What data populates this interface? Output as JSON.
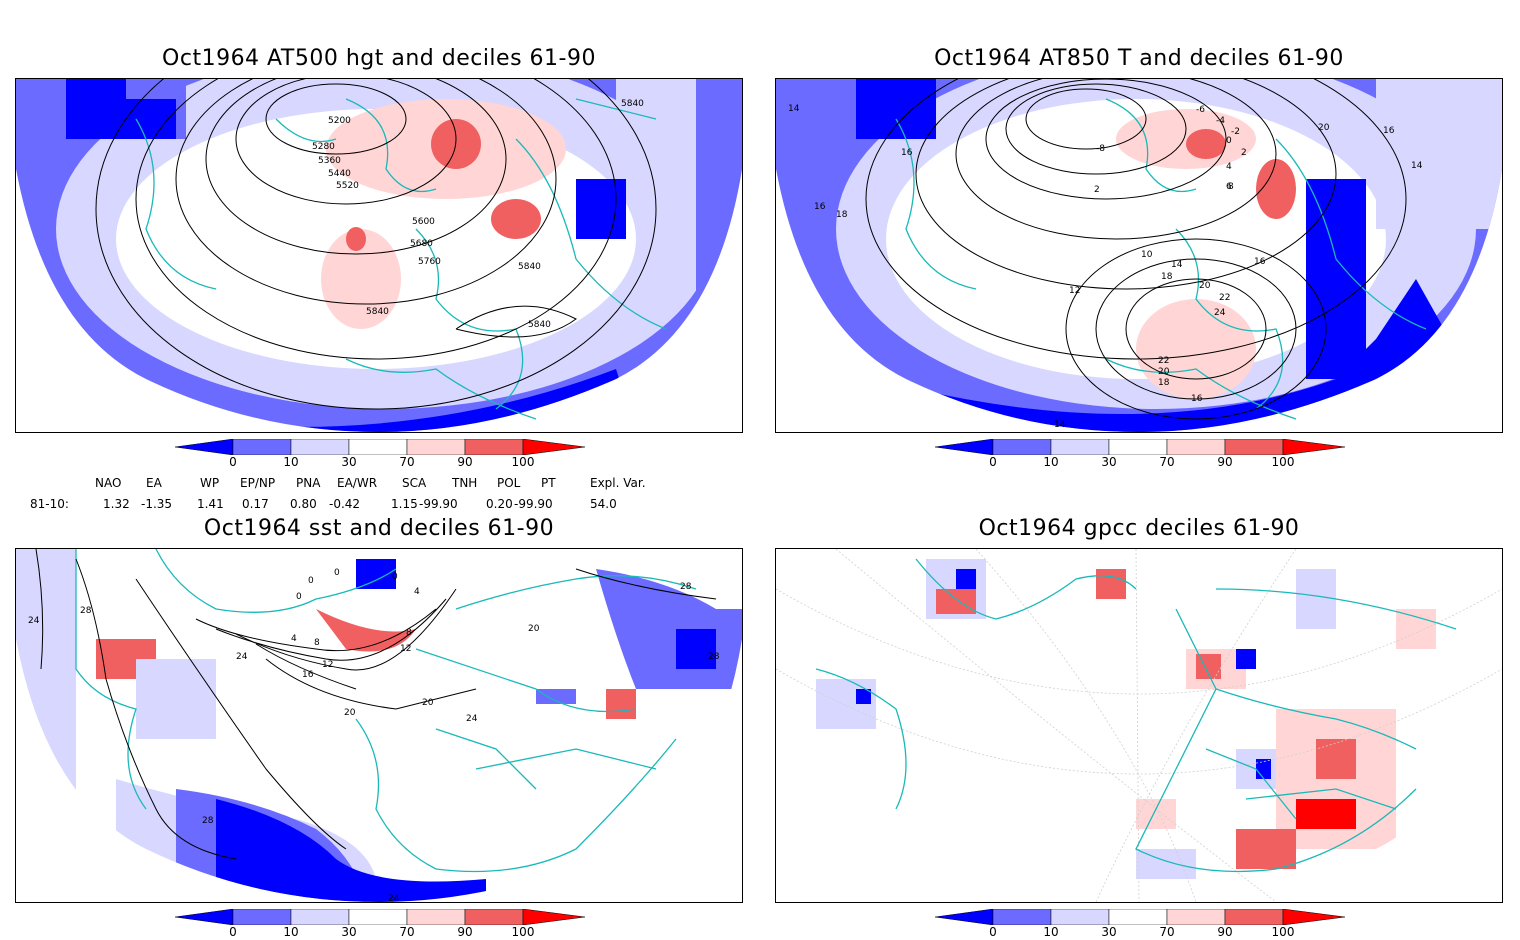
{
  "panels": {
    "p1": {
      "title": "Oct1964 AT500 hgt and deciles 61-90",
      "contour_labels": [
        "5200",
        "5280",
        "5360",
        "5440",
        "5520",
        "5600",
        "5680",
        "5760",
        "5840",
        "5840",
        "5840",
        "5840"
      ]
    },
    "p2": {
      "title": "Oct1964 AT850 T and deciles 61-90",
      "contour_labels": [
        "14",
        "16",
        "16",
        "18",
        "20",
        "16",
        "14",
        "-6",
        "-4",
        "-2",
        "0",
        "2",
        "4",
        "6",
        "10",
        "12",
        "14",
        "16",
        "18",
        "20",
        "22",
        "24",
        "22",
        "20",
        "18",
        "16",
        "14",
        "-8",
        "8",
        "2"
      ]
    },
    "p3": {
      "title": "Oct1964 sst and deciles 61-90",
      "contour_labels": [
        "24",
        "28",
        "0",
        "0",
        "0",
        "0",
        "4",
        "4",
        "8",
        "8",
        "12",
        "12",
        "16",
        "20",
        "20",
        "20",
        "24",
        "24",
        "28",
        "28",
        "28",
        "24"
      ]
    },
    "p4": {
      "title": "Oct1964 gpcc deciles 61-90"
    }
  },
  "colorbar": {
    "ticks": [
      "0",
      "10",
      "30",
      "70",
      "90",
      "100"
    ],
    "colors": [
      "#0000ff",
      "#6b6bff",
      "#d7d7ff",
      "#ffffff",
      "#ffd5d5",
      "#f06060",
      "#ff0000"
    ]
  },
  "indices": {
    "headers": [
      "NAO",
      "EA",
      "WP",
      "EP/NP",
      "PNA",
      "EA/WR",
      "SCA",
      "TNH",
      "POL",
      "PT",
      "Expl. Var."
    ],
    "row_label": "81-10:",
    "values": [
      "1.32",
      "-1.35",
      "1.41",
      "0.17",
      "0.80",
      "-0.42",
      "1.15",
      "-99.90",
      "0.20",
      "-99.90",
      "54.0"
    ]
  }
}
